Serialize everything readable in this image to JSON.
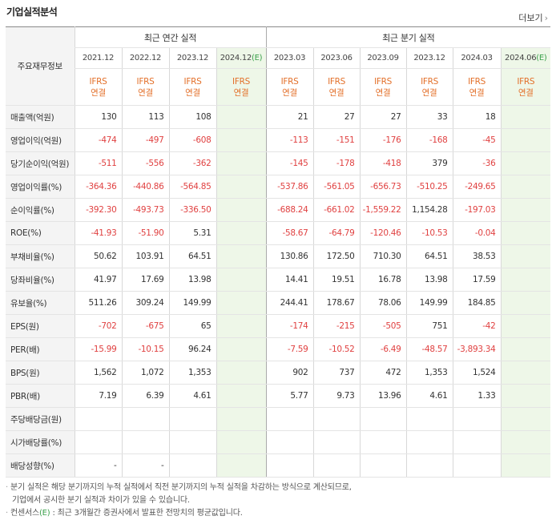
{
  "title": "기업실적분석",
  "more_label": "더보기",
  "header": {
    "row_label": "주요재무정보",
    "annual_group": "최근 연간 실적",
    "quarter_group": "최근 분기 실적",
    "annual_periods": [
      "2021.12",
      "2022.12",
      "2023.12",
      "2024.12"
    ],
    "quarter_periods": [
      "2023.03",
      "2023.06",
      "2023.09",
      "2023.12",
      "2024.03",
      "2024.06"
    ],
    "estimate_mark": "(E)",
    "ifrs_top": "IFRS",
    "ifrs_bottom": "연결"
  },
  "rows": [
    {
      "label": "매출액(억원)",
      "annual": [
        "130",
        "113",
        "108",
        ""
      ],
      "quarter": [
        "21",
        "27",
        "27",
        "33",
        "18",
        ""
      ]
    },
    {
      "label": "영업이익(억원)",
      "annual": [
        "-474",
        "-497",
        "-608",
        ""
      ],
      "quarter": [
        "-113",
        "-151",
        "-176",
        "-168",
        "-45",
        ""
      ]
    },
    {
      "label": "당기순이익(억원)",
      "annual": [
        "-511",
        "-556",
        "-362",
        ""
      ],
      "quarter": [
        "-145",
        "-178",
        "-418",
        "379",
        "-36",
        ""
      ]
    },
    {
      "label": "영업이익률(%)",
      "annual": [
        "-364.36",
        "-440.86",
        "-564.85",
        ""
      ],
      "quarter": [
        "-537.86",
        "-561.05",
        "-656.73",
        "-510.25",
        "-249.65",
        ""
      ]
    },
    {
      "label": "순이익률(%)",
      "annual": [
        "-392.30",
        "-493.73",
        "-336.50",
        ""
      ],
      "quarter": [
        "-688.24",
        "-661.02",
        "-1,559.22",
        "1,154.28",
        "-197.03",
        ""
      ]
    },
    {
      "label": "ROE(%)",
      "annual": [
        "-41.93",
        "-51.90",
        "5.31",
        ""
      ],
      "quarter": [
        "-58.67",
        "-64.79",
        "-120.46",
        "-10.53",
        "-0.04",
        ""
      ]
    },
    {
      "label": "부채비율(%)",
      "annual": [
        "50.62",
        "103.91",
        "64.51",
        ""
      ],
      "quarter": [
        "130.86",
        "172.50",
        "710.30",
        "64.51",
        "38.53",
        ""
      ]
    },
    {
      "label": "당좌비율(%)",
      "annual": [
        "41.97",
        "17.69",
        "13.98",
        ""
      ],
      "quarter": [
        "14.41",
        "19.51",
        "16.78",
        "13.98",
        "17.59",
        ""
      ]
    },
    {
      "label": "유보율(%)",
      "annual": [
        "511.26",
        "309.24",
        "149.99",
        ""
      ],
      "quarter": [
        "244.41",
        "178.67",
        "78.06",
        "149.99",
        "184.85",
        ""
      ]
    },
    {
      "label": "EPS(원)",
      "annual": [
        "-702",
        "-675",
        "65",
        ""
      ],
      "quarter": [
        "-174",
        "-215",
        "-505",
        "751",
        "-42",
        ""
      ]
    },
    {
      "label": "PER(배)",
      "annual": [
        "-15.99",
        "-10.15",
        "96.24",
        ""
      ],
      "quarter": [
        "-7.59",
        "-10.52",
        "-6.49",
        "-48.57",
        "-3,893.34",
        ""
      ]
    },
    {
      "label": "BPS(원)",
      "annual": [
        "1,562",
        "1,072",
        "1,353",
        ""
      ],
      "quarter": [
        "902",
        "737",
        "472",
        "1,353",
        "1,524",
        ""
      ]
    },
    {
      "label": "PBR(배)",
      "annual": [
        "7.19",
        "6.39",
        "4.61",
        ""
      ],
      "quarter": [
        "5.77",
        "9.73",
        "13.96",
        "4.61",
        "1.33",
        ""
      ]
    },
    {
      "label": "주당배당금(원)",
      "annual": [
        "",
        "",
        "",
        ""
      ],
      "quarter": [
        "",
        "",
        "",
        "",
        "",
        ""
      ]
    },
    {
      "label": "시가배당률(%)",
      "annual": [
        "",
        "",
        "",
        ""
      ],
      "quarter": [
        "",
        "",
        "",
        "",
        "",
        ""
      ]
    },
    {
      "label": "배당성향(%)",
      "annual": [
        "-",
        "-",
        "",
        ""
      ],
      "quarter": [
        "",
        "",
        "",
        "",
        "",
        ""
      ]
    }
  ],
  "notes": [
    "분기 실적은 해당 분기까지의 누적 실적에서 직전 분기까지의 누적 실적을 차감하는 방식으로 계산되므로,",
    "기업에서 공시한 분기 실적과 차이가 있을 수 있습니다.",
    "컨센서스",
    "(E)",
    ": 최근 3개월간 증권사에서 발표한 전망치의 평균값입니다."
  ]
}
